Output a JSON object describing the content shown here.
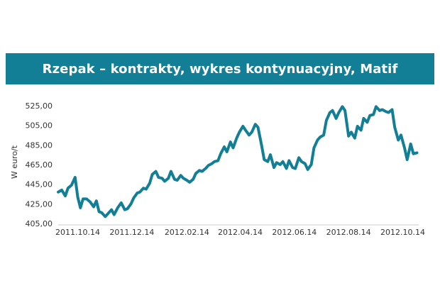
{
  "chart_data": {
    "type": "line",
    "title": "Rzepak – kontrakty, wykres kontynuacyjny, Matif",
    "xlabel": "",
    "ylabel": "W euro/t",
    "ylim": [
      405,
      530
    ],
    "y_ticks": [
      "405,00",
      "425,00",
      "445,00",
      "465,00",
      "485,00",
      "505,00",
      "525,00"
    ],
    "x_ticks": [
      "2011.10.14",
      "2011.12.14",
      "2012.02.14",
      "2012.04.14",
      "2012.06.14",
      "2012.08.14",
      "2012.10.14"
    ],
    "x_tick_dates": [
      "2011-10-14",
      "2011-12-14",
      "2012-02-14",
      "2012-04-14",
      "2012-06-14",
      "2012-08-14",
      "2012-10-14"
    ],
    "x_range": [
      "2011-09-22",
      "2012-11-01"
    ],
    "grid": false,
    "legend": "none",
    "line_color": "#127f96",
    "series": [
      {
        "x": [
          "2011-09-22",
          "2011-09-26",
          "2011-09-30",
          "2011-10-03",
          "2011-10-07",
          "2011-10-11",
          "2011-10-14",
          "2011-10-17",
          "2011-10-20",
          "2011-10-24",
          "2011-10-28",
          "2011-11-01",
          "2011-11-04",
          "2011-11-07",
          "2011-11-10",
          "2011-11-14",
          "2011-11-17",
          "2011-11-21",
          "2011-11-24",
          "2011-11-28",
          "2011-12-02",
          "2011-12-06",
          "2011-12-09",
          "2011-12-13",
          "2011-12-16",
          "2011-12-20",
          "2011-12-23",
          "2011-12-27",
          "2011-12-30",
          "2012-01-03",
          "2012-01-06",
          "2012-01-10",
          "2012-01-13",
          "2012-01-17",
          "2012-01-20",
          "2012-01-24",
          "2012-01-27",
          "2012-01-31",
          "2012-02-03",
          "2012-02-07",
          "2012-02-10",
          "2012-02-14",
          "2012-02-17",
          "2012-02-21",
          "2012-02-24",
          "2012-02-28",
          "2012-03-02",
          "2012-03-06",
          "2012-03-09",
          "2012-03-13",
          "2012-03-16",
          "2012-03-20",
          "2012-03-23",
          "2012-03-27",
          "2012-03-30",
          "2012-04-03",
          "2012-04-06",
          "2012-04-10",
          "2012-04-13",
          "2012-04-17",
          "2012-04-20",
          "2012-04-24",
          "2012-04-27",
          "2012-05-01",
          "2012-05-04",
          "2012-05-08",
          "2012-05-11",
          "2012-05-15",
          "2012-05-18",
          "2012-05-22",
          "2012-05-25",
          "2012-05-29",
          "2012-06-01",
          "2012-06-05",
          "2012-06-08",
          "2012-06-12",
          "2012-06-15",
          "2012-06-19",
          "2012-06-22",
          "2012-06-26",
          "2012-06-29",
          "2012-07-03",
          "2012-07-06",
          "2012-07-10",
          "2012-07-13",
          "2012-07-17",
          "2012-07-20",
          "2012-07-24",
          "2012-07-27",
          "2012-07-31",
          "2012-08-03",
          "2012-08-07",
          "2012-08-10",
          "2012-08-14",
          "2012-08-17",
          "2012-08-21",
          "2012-08-24",
          "2012-08-28",
          "2012-08-31",
          "2012-09-04",
          "2012-09-07",
          "2012-09-11",
          "2012-09-14",
          "2012-09-18",
          "2012-09-21",
          "2012-09-25",
          "2012-09-28",
          "2012-10-02",
          "2012-10-05",
          "2012-10-09",
          "2012-10-12",
          "2012-10-16",
          "2012-10-19",
          "2012-10-23",
          "2012-10-26",
          "2012-10-30"
        ],
        "values": [
          437,
          439,
          433,
          441,
          444,
          452,
          432,
          421,
          430,
          430,
          427,
          422,
          428,
          417,
          416,
          412,
          415,
          419,
          414,
          421,
          426,
          419,
          420,
          425,
          431,
          436,
          437,
          441,
          440,
          446,
          455,
          458,
          452,
          451,
          448,
          451,
          458,
          450,
          449,
          454,
          451,
          449,
          447,
          450,
          456,
          459,
          458,
          461,
          464,
          466,
          468,
          469,
          476,
          483,
          478,
          488,
          482,
          492,
          498,
          504,
          500,
          495,
          498,
          506,
          503,
          485,
          470,
          468,
          475,
          462,
          467,
          465,
          468,
          461,
          469,
          462,
          461,
          472,
          468,
          466,
          460,
          465,
          482,
          490,
          493,
          495,
          510,
          518,
          520,
          512,
          518,
          524,
          520,
          494,
          498,
          492,
          504,
          500,
          512,
          508,
          515,
          516,
          524,
          520,
          521,
          519,
          518,
          521,
          503,
          490,
          495,
          482,
          470,
          486,
          476,
          477
        ]
      }
    ]
  }
}
